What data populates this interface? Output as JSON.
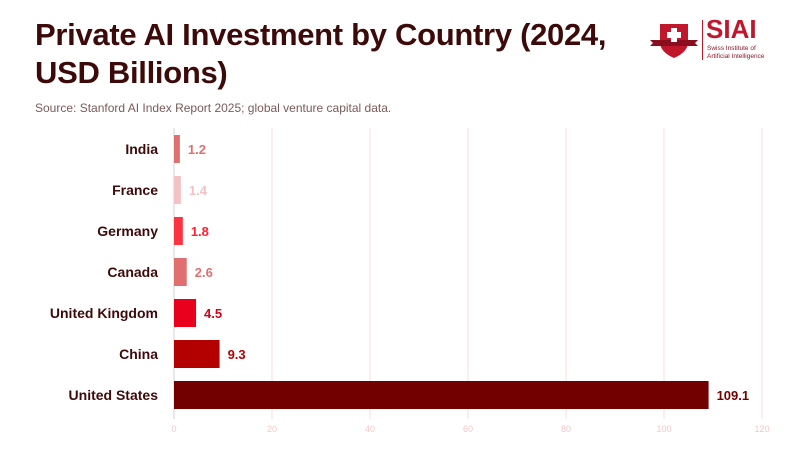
{
  "header": {
    "title": "Private AI Investment by Country (2024, USD Billions)",
    "subtitle": "Source: Stanford AI Index Report 2025; global venture capital data."
  },
  "logo": {
    "name": "SIAI",
    "tagline_line1": "Swiss Institute of",
    "tagline_line2": "Artificial Intelligence",
    "colors": {
      "primary": "#c0172d"
    }
  },
  "chart_data": {
    "type": "bar",
    "orientation": "horizontal",
    "title": "Private AI Investment by Country (2024, USD Billions)",
    "xlabel": "",
    "ylabel": "",
    "xlim": [
      0,
      120
    ],
    "xticks": [
      0,
      20,
      40,
      60,
      80,
      100,
      120
    ],
    "grid": true,
    "categories": [
      "India",
      "France",
      "Germany",
      "Canada",
      "United Kingdom",
      "China",
      "United States"
    ],
    "values": [
      1.2,
      1.4,
      1.8,
      2.6,
      4.5,
      9.3,
      109.1
    ],
    "value_labels": [
      "1.2",
      "1.4",
      "1.8",
      "2.6",
      "4.5",
      "9.3",
      "109.1"
    ],
    "colors": [
      "#e07070",
      "#f2c2c4",
      "#ff3240",
      "#e07070",
      "#e8001c",
      "#b30000",
      "#730000"
    ],
    "label_colors": [
      "#e07070",
      "#f2c2c4",
      "#ff1f2f",
      "#e07070",
      "#d40018",
      "#b30000",
      "#730000"
    ]
  }
}
